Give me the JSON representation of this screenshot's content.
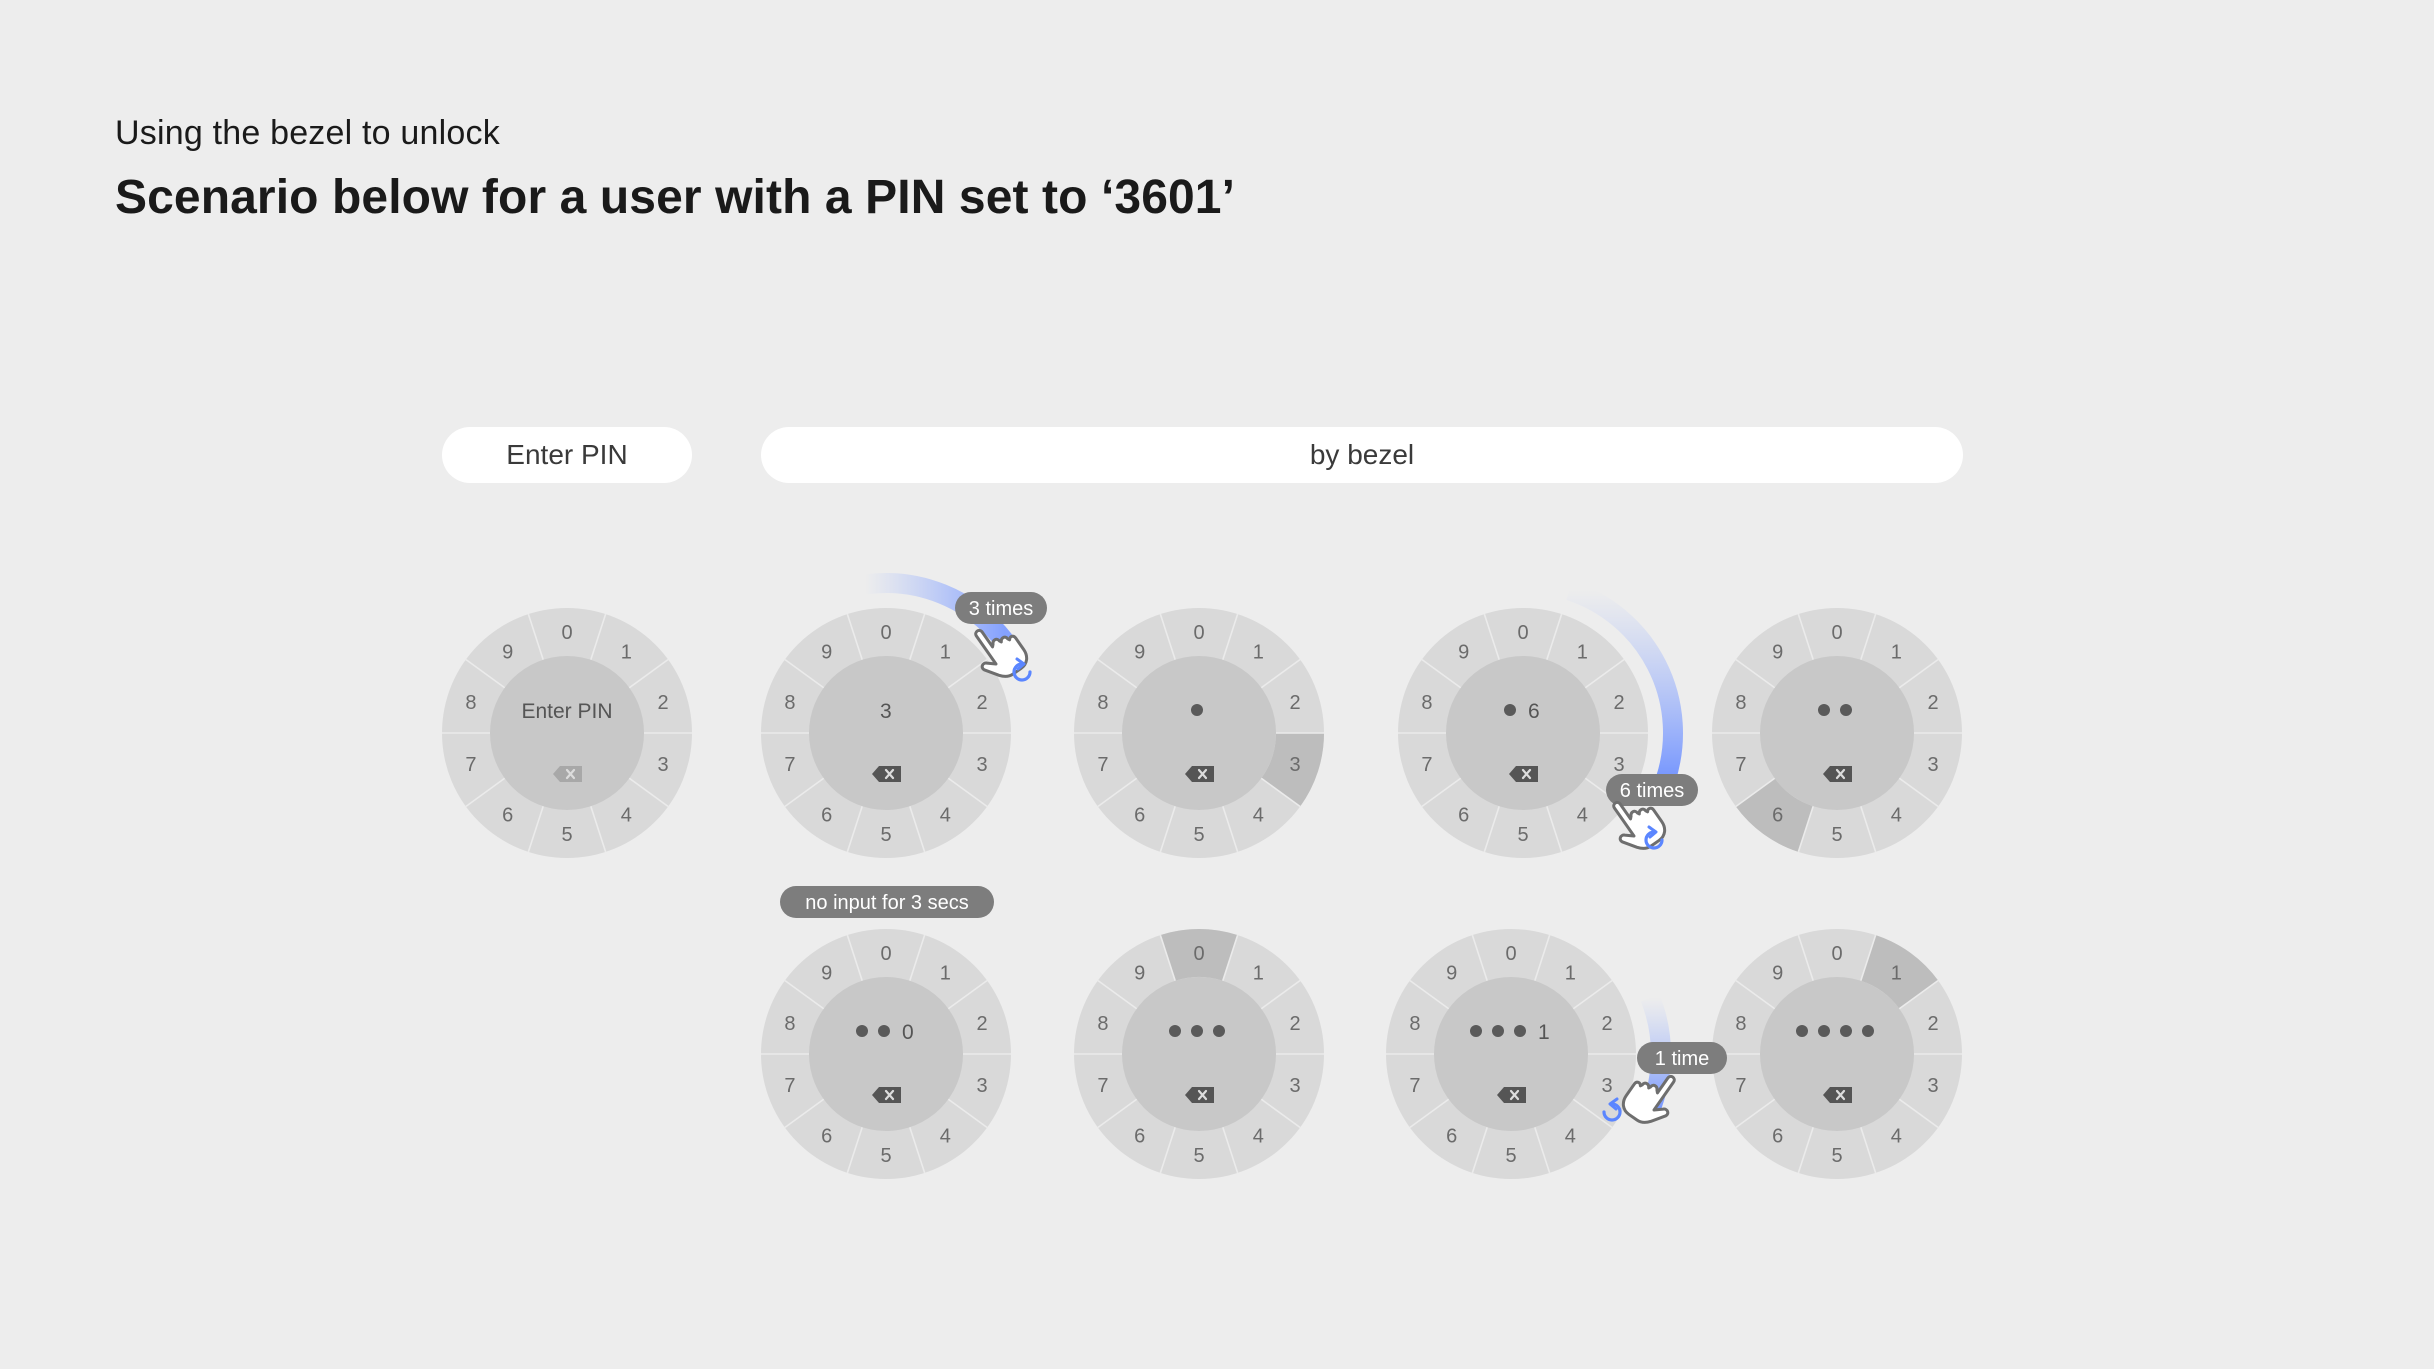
{
  "header": {
    "subtitle": "Using the bezel to unlock",
    "title": "Scenario below for a user with a PIN set to ‘3601’"
  },
  "labels": {
    "enter_pin": "Enter PIN",
    "by_bezel": "by bezel"
  },
  "dial_digits": [
    "0",
    "1",
    "2",
    "3",
    "4",
    "5",
    "6",
    "7",
    "8",
    "9"
  ],
  "watches": [
    {
      "id": "w1",
      "center_text": "Enter PIN",
      "dots": 0,
      "highlight": null,
      "backspace_active": false
    },
    {
      "id": "w2",
      "center_text": "3",
      "dots": 0,
      "highlight": null,
      "backspace_active": true
    },
    {
      "id": "w3",
      "center_text": "",
      "dots": 1,
      "highlight": "3",
      "backspace_active": true
    },
    {
      "id": "w4",
      "center_text": "6",
      "dots": 1,
      "highlight": null,
      "backspace_active": true
    },
    {
      "id": "w5",
      "center_text": "",
      "dots": 2,
      "highlight": "6",
      "backspace_active": true
    },
    {
      "id": "w6",
      "center_text": "0",
      "dots": 2,
      "highlight": null,
      "backspace_active": true
    },
    {
      "id": "w7",
      "center_text": "",
      "dots": 3,
      "highlight": "0",
      "backspace_active": true
    },
    {
      "id": "w8",
      "center_text": "1",
      "dots": 3,
      "highlight": null,
      "backspace_active": true
    },
    {
      "id": "w9",
      "center_text": "",
      "dots": 4,
      "highlight": "1",
      "backspace_active": true
    }
  ],
  "annotations": {
    "three_times": "3 times",
    "six_times": "6 times",
    "one_time": "1 time",
    "no_input": "no input for 3 secs"
  },
  "colors": {
    "background": "#ededed",
    "ring": "#d9d9d9",
    "center": "#c8c8c8",
    "highlight_segment": "#bdbdbd",
    "badge": "#7d7d7d",
    "accent_blue": "#5b86ff"
  }
}
